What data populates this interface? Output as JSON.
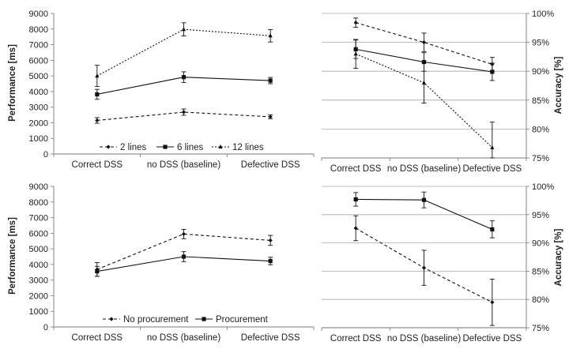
{
  "chart_data": [
    {
      "id": "tl",
      "type": "line",
      "ylabel": "Performance [ms]",
      "ylim": [
        0,
        9000
      ],
      "ytick_step": 1000,
      "yticks": [
        "0",
        "1000",
        "2000",
        "3000",
        "4000",
        "5000",
        "6000",
        "7000",
        "8000",
        "9000"
      ],
      "yaxis_side": "left",
      "categories": [
        "Correct DSS",
        "no DSS (baseline)",
        "Defective DSS"
      ],
      "legend_position": "bottom",
      "series": [
        {
          "name": "2 lines",
          "marker": "diamond",
          "dash": "4,3",
          "values": [
            2150,
            2680,
            2380
          ],
          "err": [
            180,
            200,
            120
          ]
        },
        {
          "name": "6 lines",
          "marker": "square",
          "dash": "",
          "values": [
            3820,
            4920,
            4700
          ],
          "err": [
            320,
            340,
            200
          ]
        },
        {
          "name": "12 lines",
          "marker": "triangle",
          "dash": "2,2",
          "values": [
            5000,
            7980,
            7570
          ],
          "err": [
            680,
            420,
            400
          ]
        }
      ]
    },
    {
      "id": "tr",
      "type": "line",
      "ylabel": "Accuracy [%]",
      "ylim": [
        75,
        100
      ],
      "ytick_step": 5,
      "yticks": [
        "75%",
        "80%",
        "85%",
        "90%",
        "95%",
        "100%"
      ],
      "yaxis_side": "right",
      "categories": [
        "Correct DSS",
        "no DSS (baseline)",
        "Defective DSS"
      ],
      "series": [
        {
          "marker": "diamond",
          "dash": "4,3",
          "values": [
            98.4,
            95.0,
            91.2
          ],
          "err": [
            0.8,
            1.6,
            1.2
          ]
        },
        {
          "marker": "square",
          "dash": "",
          "values": [
            93.8,
            91.6,
            89.9
          ],
          "err": [
            1.6,
            1.6,
            1.5
          ]
        },
        {
          "marker": "triangle",
          "dash": "2,2",
          "values": [
            93.0,
            88.0,
            76.8
          ],
          "err": [
            2.5,
            3.5,
            4.4
          ]
        }
      ]
    },
    {
      "id": "bl",
      "type": "line",
      "ylabel": "Performance [ms]",
      "ylim": [
        0,
        9000
      ],
      "ytick_step": 1000,
      "yticks": [
        "0",
        "1000",
        "2000",
        "3000",
        "4000",
        "5000",
        "6000",
        "7000",
        "8000",
        "9000"
      ],
      "yaxis_side": "left",
      "categories": [
        "Correct DSS",
        "no DSS (baseline)",
        "Defective DSS"
      ],
      "legend_position": "bottom",
      "series": [
        {
          "name": "No procurement",
          "marker": "diamond",
          "dash": "4,3",
          "values": [
            3680,
            5950,
            5540
          ],
          "err": [
            440,
            300,
            320
          ]
        },
        {
          "name": "Procurement",
          "marker": "square",
          "dash": "",
          "values": [
            3560,
            4500,
            4220
          ],
          "err": [
            320,
            320,
            240
          ]
        }
      ]
    },
    {
      "id": "br",
      "type": "line",
      "ylabel": "Accuracy [%]",
      "ylim": [
        75,
        100
      ],
      "ytick_step": 5,
      "yticks": [
        "75%",
        "80%",
        "85%",
        "90%",
        "95%",
        "100%"
      ],
      "yaxis_side": "right",
      "categories": [
        "Correct DSS",
        "no DSS (baseline)",
        "Defective DSS"
      ],
      "series": [
        {
          "marker": "diamond",
          "dash": "4,3",
          "values": [
            92.6,
            85.6,
            79.5
          ],
          "err": [
            2.2,
            3.1,
            4.1
          ]
        },
        {
          "marker": "square",
          "dash": "",
          "values": [
            97.7,
            97.6,
            92.4
          ],
          "err": [
            1.2,
            1.4,
            1.5
          ]
        }
      ]
    }
  ]
}
